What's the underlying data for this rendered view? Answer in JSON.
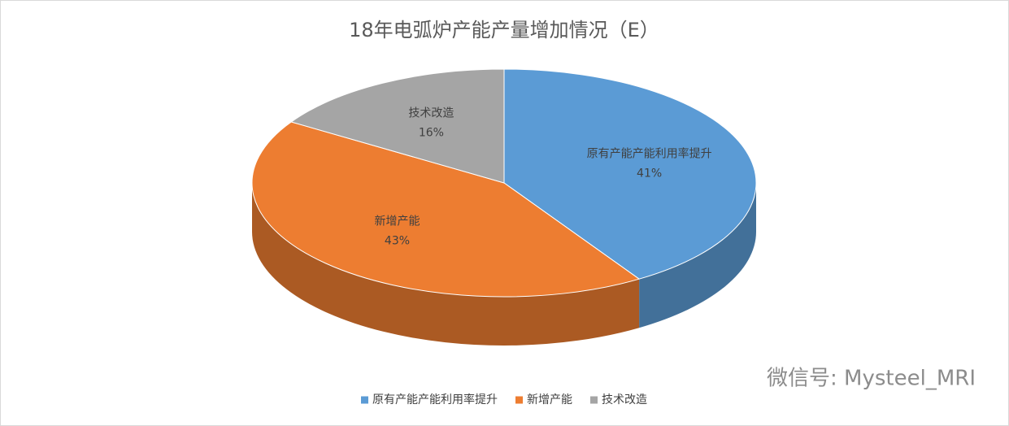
{
  "chart_data": {
    "type": "pie3d",
    "title": "18年电弧炉产能产量增加情况（E）",
    "categories": [
      "原有产能产能利用率提升",
      "新增产能",
      "技术改造"
    ],
    "values": [
      41,
      43,
      16
    ],
    "value_labels": [
      "41%",
      "43%",
      "16%"
    ],
    "colors": [
      "#5b9bd5",
      "#ed7d31",
      "#a5a5a5"
    ],
    "legend": "bottom"
  },
  "watermark": "微信号: Mysteel_MRI"
}
